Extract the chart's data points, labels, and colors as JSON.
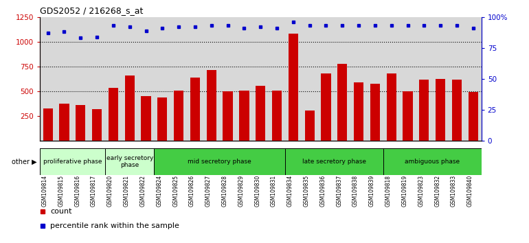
{
  "title": "GDS2052 / 216268_s_at",
  "samples": [
    "GSM109814",
    "GSM109815",
    "GSM109816",
    "GSM109817",
    "GSM109820",
    "GSM109821",
    "GSM109822",
    "GSM109824",
    "GSM109825",
    "GSM109826",
    "GSM109827",
    "GSM109828",
    "GSM109829",
    "GSM109830",
    "GSM109831",
    "GSM109834",
    "GSM109835",
    "GSM109836",
    "GSM109837",
    "GSM109838",
    "GSM109839",
    "GSM109818",
    "GSM109819",
    "GSM109823",
    "GSM109832",
    "GSM109833",
    "GSM109840"
  ],
  "counts": [
    330,
    375,
    360,
    320,
    535,
    660,
    455,
    435,
    505,
    640,
    715,
    500,
    505,
    555,
    505,
    1085,
    310,
    680,
    775,
    590,
    580,
    680,
    500,
    620,
    625,
    620,
    495
  ],
  "percentiles": [
    87,
    88,
    83,
    84,
    93,
    92,
    89,
    91,
    92,
    92,
    93,
    93,
    91,
    92,
    91,
    96,
    93,
    93,
    93,
    93,
    93,
    93,
    93,
    93,
    93,
    93,
    91
  ],
  "phases": [
    {
      "label": "proliferative phase",
      "start": 0,
      "end": 4,
      "color": "#ccffcc"
    },
    {
      "label": "early secretory\nphase",
      "start": 4,
      "end": 7,
      "color": "#ccffcc"
    },
    {
      "label": "mid secretory phase",
      "start": 7,
      "end": 15,
      "color": "#44cc44"
    },
    {
      "label": "late secretory phase",
      "start": 15,
      "end": 21,
      "color": "#44cc44"
    },
    {
      "label": "ambiguous phase",
      "start": 21,
      "end": 27,
      "color": "#44cc44"
    }
  ],
  "bar_color": "#cc0000",
  "dot_color": "#0000cc",
  "ylim_left": [
    0,
    1250
  ],
  "ylim_right": [
    0,
    100
  ],
  "yticks_left": [
    250,
    500,
    750,
    1000,
    1250
  ],
  "yticks_right": [
    0,
    25,
    50,
    75,
    100
  ],
  "ytick_right_labels": [
    "0",
    "25",
    "50",
    "75",
    "100%"
  ],
  "grid_lines": [
    500,
    750,
    1000
  ],
  "background_color": "#d8d8d8",
  "figure_bg": "#ffffff"
}
